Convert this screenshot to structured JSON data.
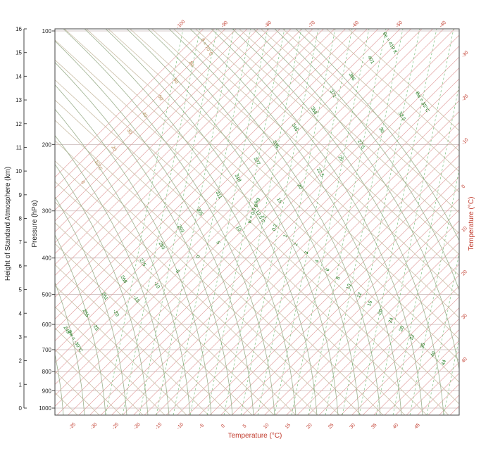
{
  "diagram": {
    "left_axis_title": "Height of Standard Atmosphere (km)",
    "pressure_axis_title": "Pressure (hPa)",
    "bottom_axis_title": "Temperature (°C)",
    "right_axis_title": "Temperature (°C)",
    "height_ticks": [
      "16",
      "15",
      "14",
      "13",
      "12",
      "11",
      "10",
      "9",
      "8",
      "7",
      "6",
      "5",
      "4",
      "3",
      "2",
      "1",
      "0"
    ],
    "pressure_ticks": [
      "100",
      "200",
      "300",
      "400",
      "500",
      "600",
      "700",
      "800",
      "900",
      "1000"
    ],
    "bottom_temp_ticks": [
      "-35",
      "-30",
      "-25",
      "-20",
      "-15",
      "-10",
      "-5",
      "0",
      "5",
      "10",
      "15",
      "20",
      "25",
      "30",
      "35",
      "40",
      "45"
    ],
    "top_temp_ticks": [
      "-100",
      "-90",
      "-80",
      "-70",
      "-60",
      "-50",
      "-40"
    ],
    "right_temp_ticks": [
      "-30",
      "-20",
      "-10",
      "0",
      "10",
      "20",
      "30",
      "40"
    ],
    "theta_e_labels": [
      "θe = 419 K",
      "401",
      "386",
      "371",
      "358",
      "346",
      "336",
      "327",
      "318",
      "311",
      "305",
      "293",
      "283",
      "275",
      "268",
      "261",
      "255",
      "249"
    ],
    "theta_w_labels": [
      "θw = 35°C",
      "32.5",
      "30",
      "27.5",
      "25",
      "22.5",
      "20",
      "15",
      "12.5",
      "10",
      "5",
      "0",
      "-5",
      "-10",
      "-15",
      "-20",
      "-25",
      "θw = -30°C"
    ],
    "mixing_ratio_labels": [
      "w = 0.5 g/kg",
      "0.1",
      "0.2",
      "1",
      "2",
      "3",
      "4",
      "6",
      "8",
      "10",
      "12",
      "16",
      "20",
      "24",
      "28",
      "32",
      "36",
      "40",
      "44"
    ],
    "theta_labels": [
      "θ = 70°C",
      "80",
      "60",
      "50",
      "40",
      "30",
      "20",
      "10°C",
      "0"
    ],
    "colors": {
      "frame": "#444444",
      "pressure_line": "#c9b7b7",
      "isotherm": "#e3a3a3",
      "dry_adiabat": "#cbbfa8",
      "moist_adiabat": "#9cb08e",
      "mixing_ratio": "#7fbf7f",
      "label_green": "#1d7a1d",
      "label_red": "#c0392b",
      "label_brown": "#b58b55"
    }
  }
}
